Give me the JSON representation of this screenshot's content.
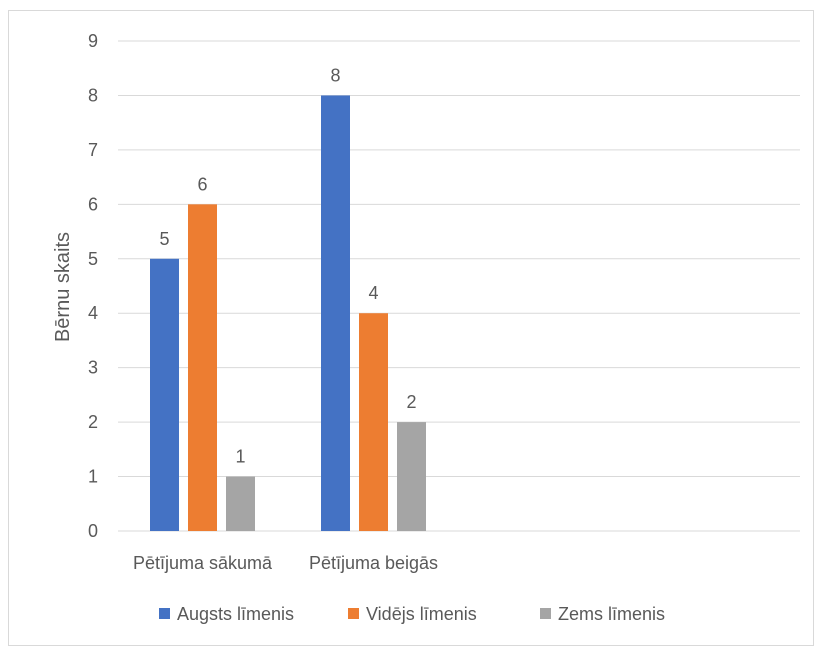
{
  "chart_data": {
    "type": "bar",
    "title": "",
    "xlabel": "",
    "ylabel": "Bērnu skaits",
    "ylim": [
      0,
      9
    ],
    "yticks": [
      0,
      1,
      2,
      3,
      4,
      5,
      6,
      7,
      8,
      9
    ],
    "grid": true,
    "legend_position": "bottom",
    "categories": [
      "Pētījuma sākumā",
      "Pētījuma beigās"
    ],
    "series": [
      {
        "name": "Augsts līmenis",
        "color": "#4472C4",
        "values": [
          5,
          8
        ]
      },
      {
        "name": "Vidējs līmenis",
        "color": "#ED7D31",
        "values": [
          6,
          4
        ]
      },
      {
        "name": "Zems līmenis",
        "color": "#A5A5A5",
        "values": [
          1,
          2
        ]
      }
    ]
  }
}
